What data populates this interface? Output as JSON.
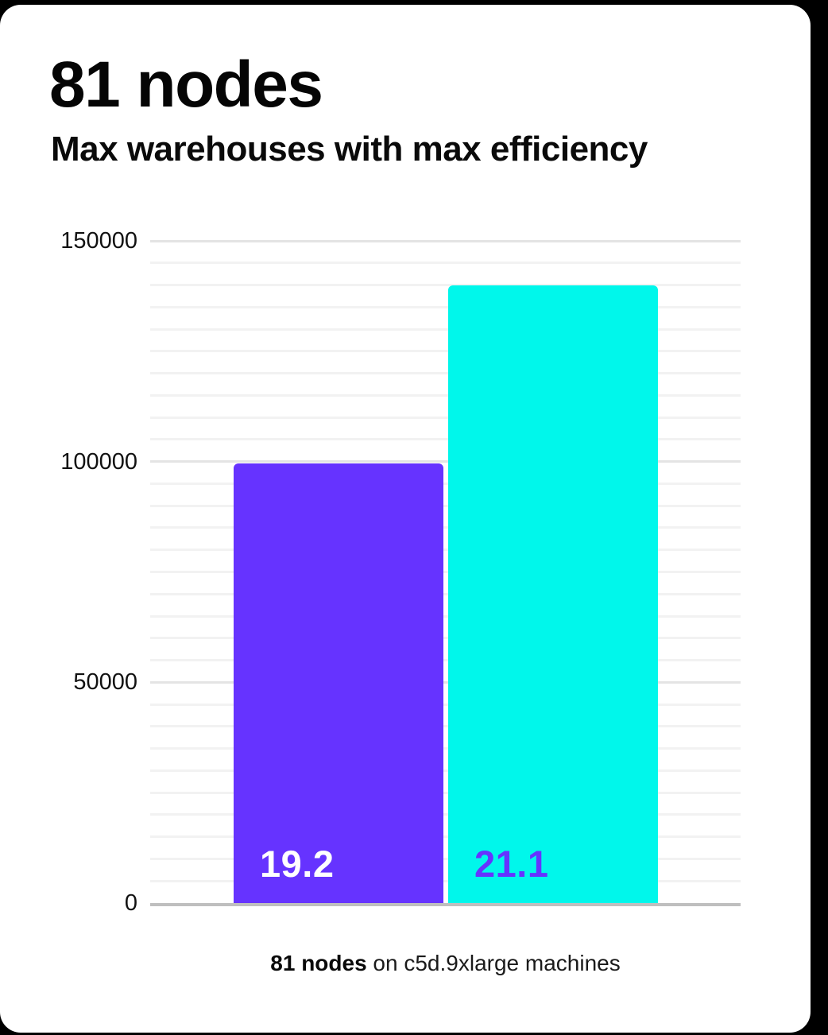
{
  "page": {
    "background_color": "#000000",
    "card_color": "#FFFFFF"
  },
  "header": {
    "title": "81 nodes",
    "subtitle": "Max warehouses with max efficiency"
  },
  "caption": {
    "bold": "81 nodes",
    "rest": " on c5d.9xlarge machines"
  },
  "colors": {
    "minor_gridline": "#F2F2F2",
    "major_gridline": "#E4E4E4",
    "baseline": "#BFBFBF",
    "text": "#111111"
  },
  "chart_data": {
    "type": "bar",
    "title": "81 nodes",
    "subtitle": "Max warehouses with max efficiency",
    "categories": [
      "19.2",
      "21.1"
    ],
    "values": [
      99500,
      140000
    ],
    "bar_labels": [
      "19.2",
      "21.1"
    ],
    "bar_colors": [
      "#6633FF",
      "#00F7EB"
    ],
    "bar_label_colors": [
      "#FFFFFF",
      "#6633FF"
    ],
    "xlabel": "",
    "ylabel": "",
    "ylim": [
      0,
      150000
    ],
    "yticks": [
      0,
      50000,
      100000,
      150000
    ],
    "ytick_labels": [
      "0",
      "50000",
      "100000",
      "150000"
    ],
    "minor_gridline_step": 5000,
    "major_gridline_step": 50000,
    "grid": "horizontal",
    "legend": "none",
    "caption": "81 nodes on c5d.9xlarge machines"
  }
}
